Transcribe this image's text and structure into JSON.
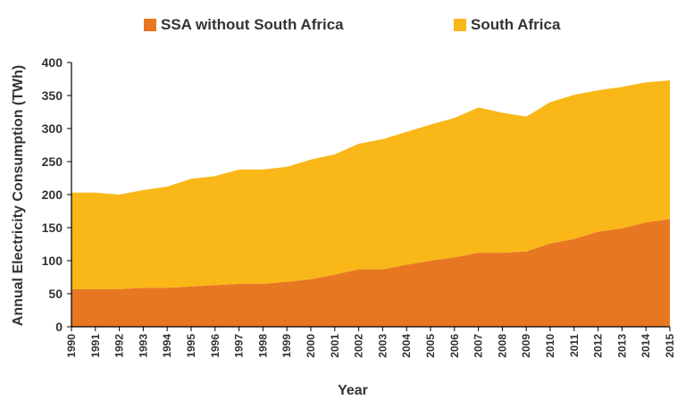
{
  "chart_data": {
    "type": "area",
    "stacked": true,
    "title": "",
    "xlabel": "Year",
    "ylabel": "Annual Electricity Consumption (TWh)",
    "ylim": [
      0,
      400
    ],
    "yticks": [
      0,
      50,
      100,
      150,
      200,
      250,
      300,
      350,
      400
    ],
    "categories": [
      "1990",
      "1991",
      "1992",
      "1993",
      "1994",
      "1995",
      "1996",
      "1997",
      "1998",
      "1999",
      "2000",
      "2001",
      "2002",
      "2003",
      "2004",
      "2005",
      "2006",
      "2007",
      "2008",
      "2009",
      "2010",
      "2011",
      "2012",
      "2013",
      "2014",
      "2015"
    ],
    "series": [
      {
        "name": "SSA without South Africa",
        "color": "#e87722",
        "values": [
          57,
          57,
          57,
          59,
          59,
          61,
          63,
          65,
          65,
          68,
          72,
          79,
          87,
          87,
          94,
          100,
          105,
          112,
          112,
          114,
          126,
          133,
          144,
          149,
          158,
          163
        ]
      },
      {
        "name": "South Africa",
        "color": "#f9b718",
        "values": [
          146,
          146,
          143,
          148,
          153,
          163,
          165,
          173,
          173,
          174,
          181,
          182,
          190,
          197,
          201,
          206,
          211,
          220,
          212,
          204,
          214,
          218,
          214,
          214,
          212,
          210
        ]
      }
    ],
    "legend_position": "top"
  }
}
